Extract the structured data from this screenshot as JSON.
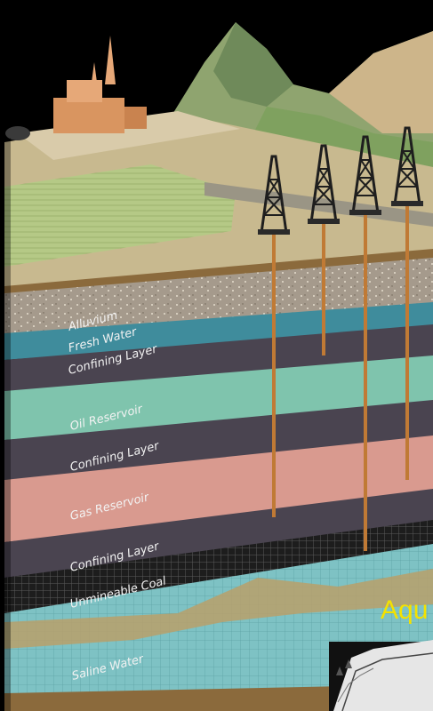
{
  "layers": [
    {
      "key": "alluvium",
      "label": "Alluvium",
      "color": "#a59a8c"
    },
    {
      "key": "fresh_water",
      "label": "Fresh Water",
      "color": "#3f8c9c"
    },
    {
      "key": "confining_1",
      "label": "Confining Layer",
      "color": "#4a4450"
    },
    {
      "key": "oil_reservoir",
      "label": "Oil Reservoir",
      "color": "#7fc4ad"
    },
    {
      "key": "confining_2",
      "label": "Confining Layer",
      "color": "#4a4450"
    },
    {
      "key": "gas_reservoir",
      "label": "Gas Reservoir",
      "color": "#d99a8f"
    },
    {
      "key": "confining_3",
      "label": "Confining Layer",
      "color": "#4a4450"
    },
    {
      "key": "unmineable_coal",
      "label": "Unmineable Coal",
      "color": "#2a2a2a"
    },
    {
      "key": "saline_water",
      "label": "Saline Water",
      "color": "#7ec2c4"
    }
  ],
  "side_text": "Aqu",
  "colors": {
    "accent_text": "#f4e200",
    "mountain": "#7f9f6a",
    "surface": "#cdb98a",
    "well_pipe": "#c07a35",
    "derrick": "#1e1e1e"
  }
}
